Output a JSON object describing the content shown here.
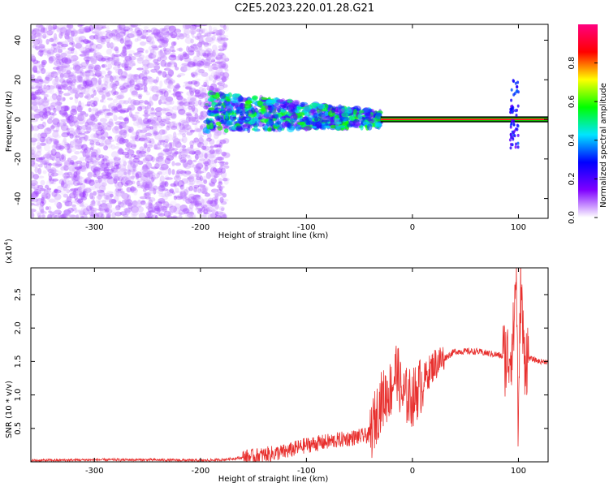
{
  "title": "C2E5.2023.220.01.28.G21",
  "chart_data": [
    {
      "type": "heatmap",
      "title": "C2E5.2023.220.01.28.G21",
      "xlabel": "Height of straight line (km)",
      "ylabel": "Frequency (Hz)",
      "xlim": [
        -360,
        128
      ],
      "ylim": [
        -50,
        48
      ],
      "xticks": [
        -300,
        -200,
        -100,
        0,
        100
      ],
      "xtick_labels": [
        "-300",
        "-200",
        "-100",
        "0",
        "100"
      ],
      "yticks": [
        -40,
        -20,
        0,
        20,
        40
      ],
      "ytick_labels": [
        "-40",
        "-20",
        "0",
        "20",
        "40"
      ],
      "grid": false,
      "colorbar": {
        "label": "Normalized spectral amplitude",
        "range": [
          0,
          1
        ],
        "ticks": [
          0.0,
          0.2,
          0.4,
          0.6,
          0.8
        ],
        "tick_labels": [
          "0.0",
          "0.2",
          "0.4",
          "0.6",
          "0.8"
        ],
        "colormap": [
          "#ffffff",
          "#7f00ff",
          "#0000ff",
          "#00e5ff",
          "#00ff00",
          "#ffff00",
          "#ff0000",
          "#ff0080"
        ]
      },
      "regions": [
        {
          "x_range": [
            -360,
            -175
          ],
          "y_range": [
            -50,
            48
          ],
          "amplitude": [
            0.02,
            0.12
          ],
          "description": "broadband noise"
        },
        {
          "x_range": [
            -195,
            -30
          ],
          "y_range": [
            -8,
            12
          ],
          "amplitude": [
            0.1,
            0.6
          ],
          "description": "signal band"
        },
        {
          "x_range": [
            -30,
            128
          ],
          "y_range": [
            -2,
            2
          ],
          "amplitude": [
            0.8,
            1.0
          ],
          "description": "carrier line"
        }
      ]
    },
    {
      "type": "line",
      "xlabel": "Height of straight line (km)",
      "ylabel": "SNR (10 * v/v)",
      "y_multiplier": "(x10^4)",
      "xlim": [
        -360,
        128
      ],
      "ylim": [
        0,
        2.9
      ],
      "xticks": [
        -300,
        -200,
        -100,
        0,
        100
      ],
      "xtick_labels": [
        "-300",
        "-200",
        "-100",
        "0",
        "100"
      ],
      "yticks": [
        0.5,
        1.0,
        1.5,
        2.0,
        2.5
      ],
      "ytick_labels": [
        "0.5",
        "1.0",
        "1.5",
        "2.0",
        "2.5"
      ],
      "grid": false,
      "series": [
        {
          "color": "#e8302e",
          "x": [
            -360,
            -300,
            -250,
            -200,
            -180,
            -150,
            -120,
            -100,
            -80,
            -60,
            -40,
            -30,
            -20,
            -15,
            -10,
            0,
            10,
            20,
            40,
            60,
            80,
            90,
            95,
            98,
            100,
            102,
            105,
            110,
            120,
            128
          ],
          "values": [
            0.02,
            0.03,
            0.03,
            0.02,
            0.03,
            0.08,
            0.15,
            0.25,
            0.3,
            0.35,
            0.4,
            0.9,
            1.1,
            1.4,
            1.0,
            0.95,
            1.2,
            1.45,
            1.65,
            1.65,
            1.6,
            1.55,
            1.8,
            2.9,
            0.2,
            2.8,
            1.6,
            1.55,
            1.5,
            1.5
          ]
        }
      ]
    }
  ]
}
